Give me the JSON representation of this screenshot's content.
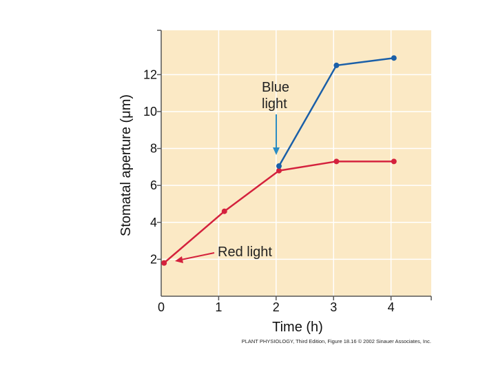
{
  "chart_data": {
    "type": "line",
    "xlabel": "Time (h)",
    "ylabel": "Stomatal aperture (μm)",
    "xlim": [
      0,
      4.7
    ],
    "ylim": [
      0,
      14.4
    ],
    "x_ticks": [
      "0",
      "1",
      "2",
      "3",
      "4"
    ],
    "y_ticks": [
      "2",
      "4",
      "6",
      "8",
      "10",
      "12"
    ],
    "grid": true,
    "series": [
      {
        "name": "Red light",
        "color": "#d4213d",
        "x": [
          0.05,
          1.1,
          2.05,
          3.05,
          4.05
        ],
        "y": [
          1.8,
          4.6,
          6.8,
          7.3,
          7.3
        ]
      },
      {
        "name": "Blue light",
        "color": "#1a5fa8",
        "x": [
          2.05,
          3.05,
          4.05
        ],
        "y": [
          7.05,
          12.5,
          12.9
        ]
      }
    ],
    "annotations": {
      "blue_line1": "Blue",
      "blue_line2": "light",
      "red": "Red light"
    },
    "caption": "PLANT PHYSIOLOGY, Third Edition, Figure 18.16 © 2002 Sinauer Associates, Inc."
  },
  "colors": {
    "plot_background": "#fbe9c5",
    "grid": "#ffffff",
    "axis": "#555555",
    "blue_arrow": "#2a8cc4",
    "red_arrow": "#d4213d"
  }
}
